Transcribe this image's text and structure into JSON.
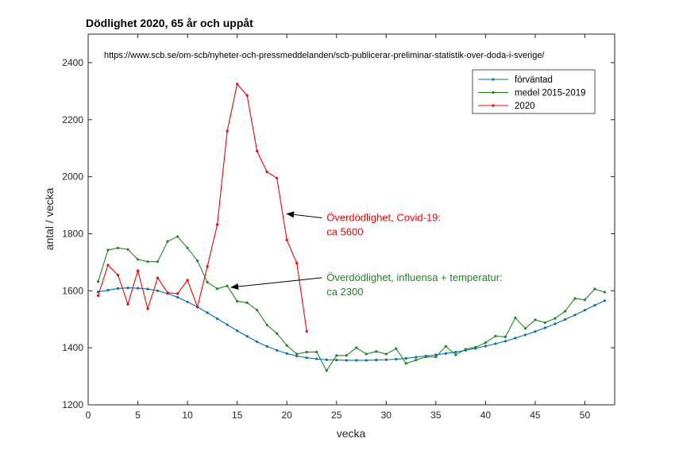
{
  "chart_data": {
    "type": "line",
    "title": "Dödlighet 2020, 65 år och uppåt",
    "source_text": "https://www.scb.se/om-scb/nyheter-och-pressmeddelanden/scb-publicerar-preliminar-statistik-over-doda-i-sverige/",
    "xlabel": "vecka",
    "ylabel": "antal / vecka",
    "xlim": [
      0,
      53
    ],
    "ylim": [
      1200,
      2500
    ],
    "xticks": [
      0,
      5,
      10,
      15,
      20,
      25,
      30,
      35,
      40,
      45,
      50
    ],
    "yticks": [
      1200,
      1400,
      1600,
      1800,
      2000,
      2200,
      2400
    ],
    "grid": false,
    "legend_position": "top-right",
    "series": [
      {
        "name": "förväntad",
        "color": "#0072BD",
        "x": [
          1,
          2,
          3,
          4,
          5,
          6,
          7,
          8,
          9,
          10,
          11,
          12,
          13,
          14,
          15,
          16,
          17,
          18,
          19,
          20,
          21,
          22,
          23,
          24,
          25,
          26,
          27,
          28,
          29,
          30,
          31,
          32,
          33,
          34,
          35,
          36,
          37,
          38,
          39,
          40,
          41,
          42,
          43,
          44,
          45,
          46,
          47,
          48,
          49,
          50,
          51,
          52
        ],
        "values": [
          1596,
          1602,
          1608,
          1610,
          1609,
          1606,
          1600,
          1590,
          1577,
          1561,
          1543,
          1523,
          1502,
          1481,
          1460,
          1440,
          1421,
          1405,
          1391,
          1380,
          1371,
          1365,
          1361,
          1358,
          1357,
          1356,
          1356,
          1356,
          1357,
          1358,
          1360,
          1363,
          1367,
          1371,
          1375,
          1380,
          1385,
          1391,
          1398,
          1406,
          1414,
          1423,
          1434,
          1445,
          1457,
          1470,
          1484,
          1499,
          1515,
          1532,
          1549,
          1565
        ]
      },
      {
        "name": "medel 2015-2019",
        "color": "#1B8A1B",
        "x": [
          1,
          2,
          3,
          4,
          5,
          6,
          7,
          8,
          9,
          10,
          11,
          12,
          13,
          14,
          15,
          16,
          17,
          18,
          19,
          20,
          21,
          22,
          23,
          24,
          25,
          26,
          27,
          28,
          29,
          30,
          31,
          32,
          33,
          34,
          35,
          36,
          37,
          38,
          39,
          40,
          41,
          42,
          43,
          44,
          45,
          46,
          47,
          48,
          49,
          50,
          51,
          52
        ],
        "values": [
          1632,
          1743,
          1750,
          1745,
          1710,
          1702,
          1702,
          1773,
          1790,
          1750,
          1705,
          1630,
          1607,
          1617,
          1563,
          1558,
          1532,
          1480,
          1450,
          1408,
          1378,
          1385,
          1385,
          1320,
          1373,
          1373,
          1400,
          1378,
          1387,
          1378,
          1397,
          1345,
          1357,
          1368,
          1368,
          1405,
          1375,
          1395,
          1402,
          1418,
          1441,
          1438,
          1505,
          1468,
          1498,
          1488,
          1503,
          1528,
          1573,
          1568,
          1606,
          1595
        ]
      },
      {
        "name": "2020",
        "color": "#FF0000",
        "x": [
          1,
          2,
          3,
          4,
          5,
          6,
          7,
          8,
          9,
          10,
          11,
          12,
          13,
          14,
          15,
          16,
          17,
          18,
          19,
          20,
          21,
          22
        ],
        "values": [
          1583,
          1690,
          1655,
          1553,
          1670,
          1537,
          1645,
          1593,
          1590,
          1637,
          1543,
          1685,
          1832,
          2160,
          2325,
          2285,
          2090,
          2017,
          1995,
          1778,
          1697,
          1458
        ]
      }
    ],
    "annotations": [
      {
        "lines": [
          "Överdödlighet, Covid-19:",
          "ca 5600"
        ],
        "color": "#FF0000",
        "x": 24,
        "y": 1800,
        "arrow_to": [
          20,
          1870
        ]
      },
      {
        "lines": [
          "Överdödlighet, influensa + temperatur:",
          "ca 2300"
        ],
        "color": "#1B8A1B",
        "x": 24,
        "y": 1590,
        "arrow_to": [
          14.4,
          1612
        ]
      }
    ]
  }
}
